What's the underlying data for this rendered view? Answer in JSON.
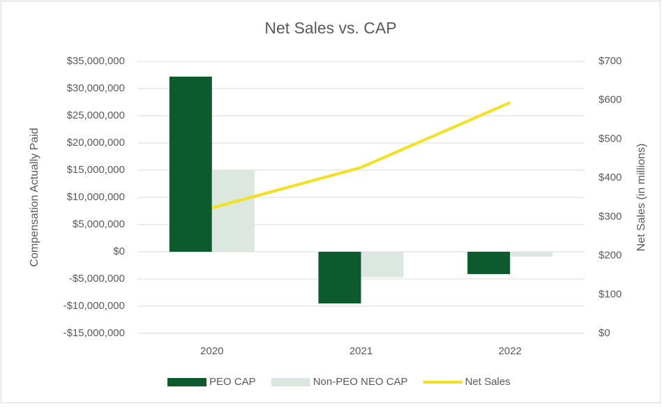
{
  "chart_data": {
    "type": "bar_line",
    "title": "Net Sales vs. CAP",
    "ylabel": "Compensation Actually Paid",
    "y2label": "Net Sales (in millions)",
    "categories": [
      "2020",
      "2021",
      "2022"
    ],
    "series": [
      {
        "name": "PEO CAP",
        "color": "#0e5a2f",
        "type": "bar",
        "values": [
          32200000,
          -9500000,
          -4100000
        ]
      },
      {
        "name": "Non-PEO NEO CAP",
        "color": "#dce7df",
        "type": "bar",
        "values": [
          15100000,
          -4700000,
          -900000
        ]
      },
      {
        "name": "Net Sales",
        "color": "#f5e11b",
        "type": "line",
        "axis": "y2",
        "values": [
          323,
          427,
          594
        ]
      }
    ],
    "ylim": [
      -15000000,
      35000000
    ],
    "yticks": [
      {
        "value": -15000000,
        "label": "-$15,000,000"
      },
      {
        "value": -10000000,
        "label": "-$10,000,000"
      },
      {
        "value": -5000000,
        "label": "-$5,000,000"
      },
      {
        "value": 0,
        "label": "$0"
      },
      {
        "value": 5000000,
        "label": "$5,000,000"
      },
      {
        "value": 10000000,
        "label": "$10,000,000"
      },
      {
        "value": 15000000,
        "label": "$15,000,000"
      },
      {
        "value": 20000000,
        "label": "$20,000,000"
      },
      {
        "value": 25000000,
        "label": "$25,000,000"
      },
      {
        "value": 30000000,
        "label": "$30,000,000"
      },
      {
        "value": 35000000,
        "label": "$35,000,000"
      }
    ],
    "y2lim": [
      0,
      700
    ],
    "y2ticks": [
      {
        "value": 0,
        "label": "$0"
      },
      {
        "value": 100,
        "label": "$100"
      },
      {
        "value": 200,
        "label": "$200"
      },
      {
        "value": 300,
        "label": "$300"
      },
      {
        "value": 400,
        "label": "$400"
      },
      {
        "value": 500,
        "label": "$500"
      },
      {
        "value": 600,
        "label": "$600"
      },
      {
        "value": 700,
        "label": "$700"
      }
    ],
    "grid": true,
    "legend": "bottom"
  }
}
